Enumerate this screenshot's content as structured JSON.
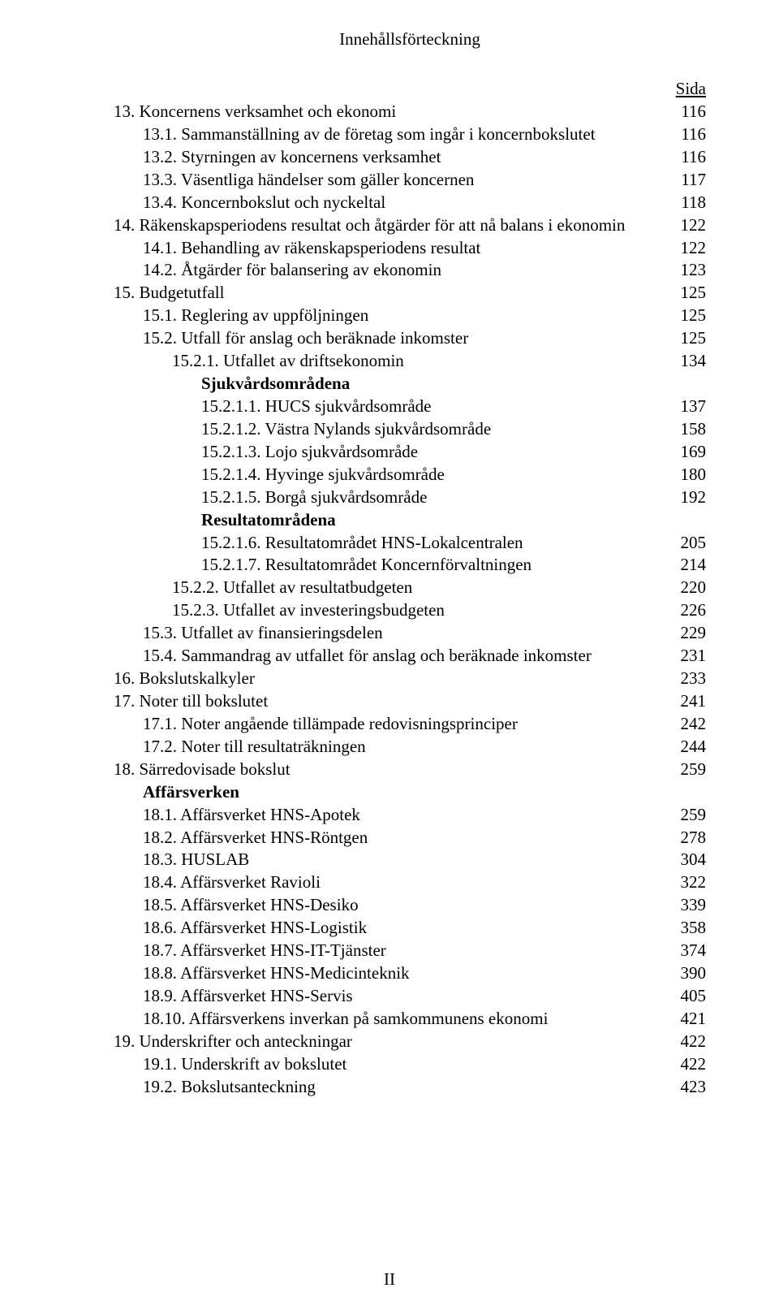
{
  "header_title": "Innehållsförteckning",
  "page_label": "Sida",
  "page_number": "II",
  "font_family": "Times New Roman",
  "text_color": "#000000",
  "background_color": "#ffffff",
  "base_font_size_pt": 16,
  "entries": [
    {
      "label": "13. Koncernens verksamhet och ekonomi",
      "page": "116",
      "indent": 0,
      "bold": false
    },
    {
      "label": "13.1. Sammanställning av de företag som ingår i koncernbokslutet",
      "page": "116",
      "indent": 1,
      "bold": false
    },
    {
      "label": "13.2. Styrningen av koncernens verksamhet",
      "page": "116",
      "indent": 1,
      "bold": false
    },
    {
      "label": "13.3. Väsentliga händelser som gäller koncernen",
      "page": "117",
      "indent": 1,
      "bold": false
    },
    {
      "label": "13.4. Koncernbokslut och nyckeltal",
      "page": "118",
      "indent": 1,
      "bold": false
    },
    {
      "label": "14. Räkenskapsperiodens resultat och åtgärder för att nå balans i ekonomin",
      "page": "122",
      "indent": 0,
      "bold": false
    },
    {
      "label": "14.1. Behandling av räkenskapsperiodens resultat",
      "page": "122",
      "indent": 1,
      "bold": false
    },
    {
      "label": "14.2. Åtgärder för balansering av ekonomin",
      "page": "123",
      "indent": 1,
      "bold": false
    },
    {
      "label": "15. Budgetutfall",
      "page": "125",
      "indent": 0,
      "bold": false
    },
    {
      "label": "15.1. Reglering av uppföljningen",
      "page": "125",
      "indent": 1,
      "bold": false
    },
    {
      "label": "15.2. Utfall för anslag och beräknade inkomster",
      "page": "125",
      "indent": 1,
      "bold": false
    },
    {
      "label": "15.2.1. Utfallet av driftsekonomin",
      "page": "134",
      "indent": 2,
      "bold": false
    },
    {
      "label": "Sjukvårdsområdena",
      "page": "",
      "indent": 3,
      "bold": true
    },
    {
      "label": "15.2.1.1. HUCS sjukvårdsområde",
      "page": "137",
      "indent": 3,
      "bold": false
    },
    {
      "label": "15.2.1.2. Västra Nylands sjukvårdsområde",
      "page": "158",
      "indent": 3,
      "bold": false
    },
    {
      "label": "15.2.1.3. Lojo sjukvårdsområde",
      "page": "169",
      "indent": 3,
      "bold": false
    },
    {
      "label": "15.2.1.4. Hyvinge sjukvårdsområde",
      "page": "180",
      "indent": 3,
      "bold": false
    },
    {
      "label": "15.2.1.5. Borgå sjukvårdsområde",
      "page": "192",
      "indent": 3,
      "bold": false
    },
    {
      "label": "Resultatområdena",
      "page": "",
      "indent": 3,
      "bold": true
    },
    {
      "label": "15.2.1.6. Resultatområdet HNS-Lokalcentralen",
      "page": "205",
      "indent": 3,
      "bold": false
    },
    {
      "label": "15.2.1.7. Resultatområdet Koncernförvaltningen",
      "page": "214",
      "indent": 3,
      "bold": false
    },
    {
      "label": "15.2.2. Utfallet av resultatbudgeten",
      "page": "220",
      "indent": 2,
      "bold": false
    },
    {
      "label": "15.2.3. Utfallet av investeringsbudgeten",
      "page": "226",
      "indent": 2,
      "bold": false
    },
    {
      "label": "15.3. Utfallet av finansieringsdelen",
      "page": "229",
      "indent": 1,
      "bold": false
    },
    {
      "label": "15.4. Sammandrag av utfallet för anslag och beräknade inkomster",
      "page": "231",
      "indent": 1,
      "bold": false
    },
    {
      "label": "16. Bokslutskalkyler",
      "page": "233",
      "indent": 0,
      "bold": false
    },
    {
      "label": "17. Noter till bokslutet",
      "page": "241",
      "indent": 0,
      "bold": false
    },
    {
      "label": "17.1.  Noter angående tillämpade redovisningsprinciper",
      "page": "242",
      "indent": 1,
      "bold": false
    },
    {
      "label": "17.2.  Noter till resultaträkningen",
      "page": "244",
      "indent": 1,
      "bold": false
    },
    {
      "label": "18. Särredovisade bokslut",
      "page": "259",
      "indent": 0,
      "bold": false
    },
    {
      "label": "Affärsverken",
      "page": "",
      "indent": 1,
      "bold": true
    },
    {
      "label": "18.1. Affärsverket HNS-Apotek",
      "page": "259",
      "indent": 1,
      "bold": false
    },
    {
      "label": "18.2. Affärsverket HNS-Röntgen",
      "page": "278",
      "indent": 1,
      "bold": false
    },
    {
      "label": "18.3. HUSLAB",
      "page": "304",
      "indent": 1,
      "bold": false
    },
    {
      "label": "18.4. Affärsverket Ravioli",
      "page": "322",
      "indent": 1,
      "bold": false
    },
    {
      "label": "18.5. Affärsverket HNS-Desiko",
      "page": "339",
      "indent": 1,
      "bold": false
    },
    {
      "label": "18.6. Affärsverket HNS-Logistik",
      "page": "358",
      "indent": 1,
      "bold": false
    },
    {
      "label": "18.7. Affärsverket HNS-IT-Tjänster",
      "page": "374",
      "indent": 1,
      "bold": false
    },
    {
      "label": "18.8. Affärsverket HNS-Medicinteknik",
      "page": "390",
      "indent": 1,
      "bold": false
    },
    {
      "label": "18.9. Affärsverket HNS-Servis",
      "page": "405",
      "indent": 1,
      "bold": false
    },
    {
      "label": "18.10. Affärsverkens inverkan på samkommunens ekonomi",
      "page": "421",
      "indent": 1,
      "bold": false
    },
    {
      "label": "19. Underskrifter och anteckningar",
      "page": "422",
      "indent": 0,
      "bold": false
    },
    {
      "label": "19.1. Underskrift av bokslutet",
      "page": "422",
      "indent": 1,
      "bold": false
    },
    {
      "label": "19.2. Bokslutsanteckning",
      "page": "423",
      "indent": 1,
      "bold": false
    }
  ]
}
